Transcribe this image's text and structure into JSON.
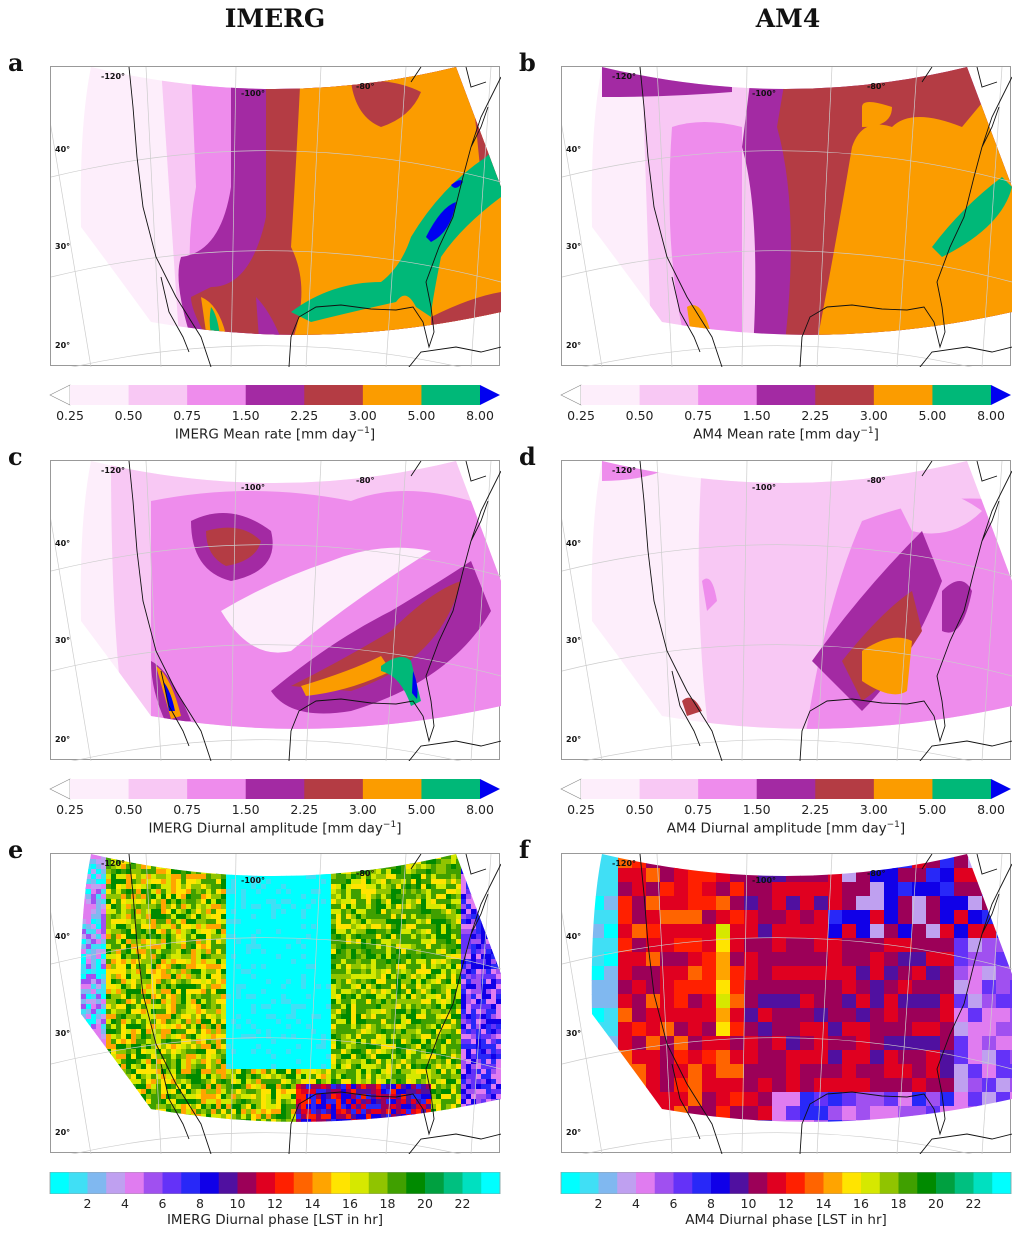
{
  "columns": [
    "IMERG",
    "AM4"
  ],
  "map_labels": {
    "lon": [
      "-120°",
      "-100°",
      "-80°"
    ],
    "lat": [
      "40°",
      "30°",
      "20°"
    ]
  },
  "rate_colorbar": {
    "ticks": [
      "0.25",
      "0.50",
      "0.75",
      "1.50",
      "2.25",
      "3.00",
      "5.00",
      "8.00"
    ],
    "colors": [
      "#fdeefb",
      "#f8c8f4",
      "#ee8cec",
      "#a32aa3",
      "#b43c44",
      "#fb9c00",
      "#00b878"
    ],
    "under_color": "#ffffff",
    "over_color": "#0000f0"
  },
  "phase_colorbar": {
    "ticks": [
      "2",
      "4",
      "6",
      "8",
      "10",
      "12",
      "14",
      "16",
      "18",
      "20",
      "22"
    ],
    "colors": [
      "#00ffff",
      "#40dff5",
      "#80b8f0",
      "#bfa0f0",
      "#e07cf0",
      "#a050f0",
      "#6432f8",
      "#2828f8",
      "#1000e8",
      "#5010a0",
      "#9c0058",
      "#e00020",
      "#ff2000",
      "#ff6400",
      "#ffa400",
      "#ffe400",
      "#d6e800",
      "#90c400",
      "#40a000",
      "#008a00",
      "#00a040",
      "#00c080",
      "#00e0c0",
      "#00ffff"
    ]
  },
  "panels": [
    {
      "letter": "a",
      "label": "IMERG Mean rate [mm day",
      "unit_exp": "−1",
      "unit_end": "]"
    },
    {
      "letter": "b",
      "label": "AM4 Mean rate [mm day",
      "unit_exp": "−1",
      "unit_end": "]"
    },
    {
      "letter": "c",
      "label": "IMERG Diurnal amplitude [mm day",
      "unit_exp": "−1",
      "unit_end": "]"
    },
    {
      "letter": "d",
      "label": "AM4 Diurnal amplitude [mm day",
      "unit_exp": "−1",
      "unit_end": "]"
    },
    {
      "letter": "e",
      "label": "IMERG Diurnal phase [LST in hr]"
    },
    {
      "letter": "f",
      "label": "AM4 Diurnal phase [LST in hr]"
    }
  ]
}
